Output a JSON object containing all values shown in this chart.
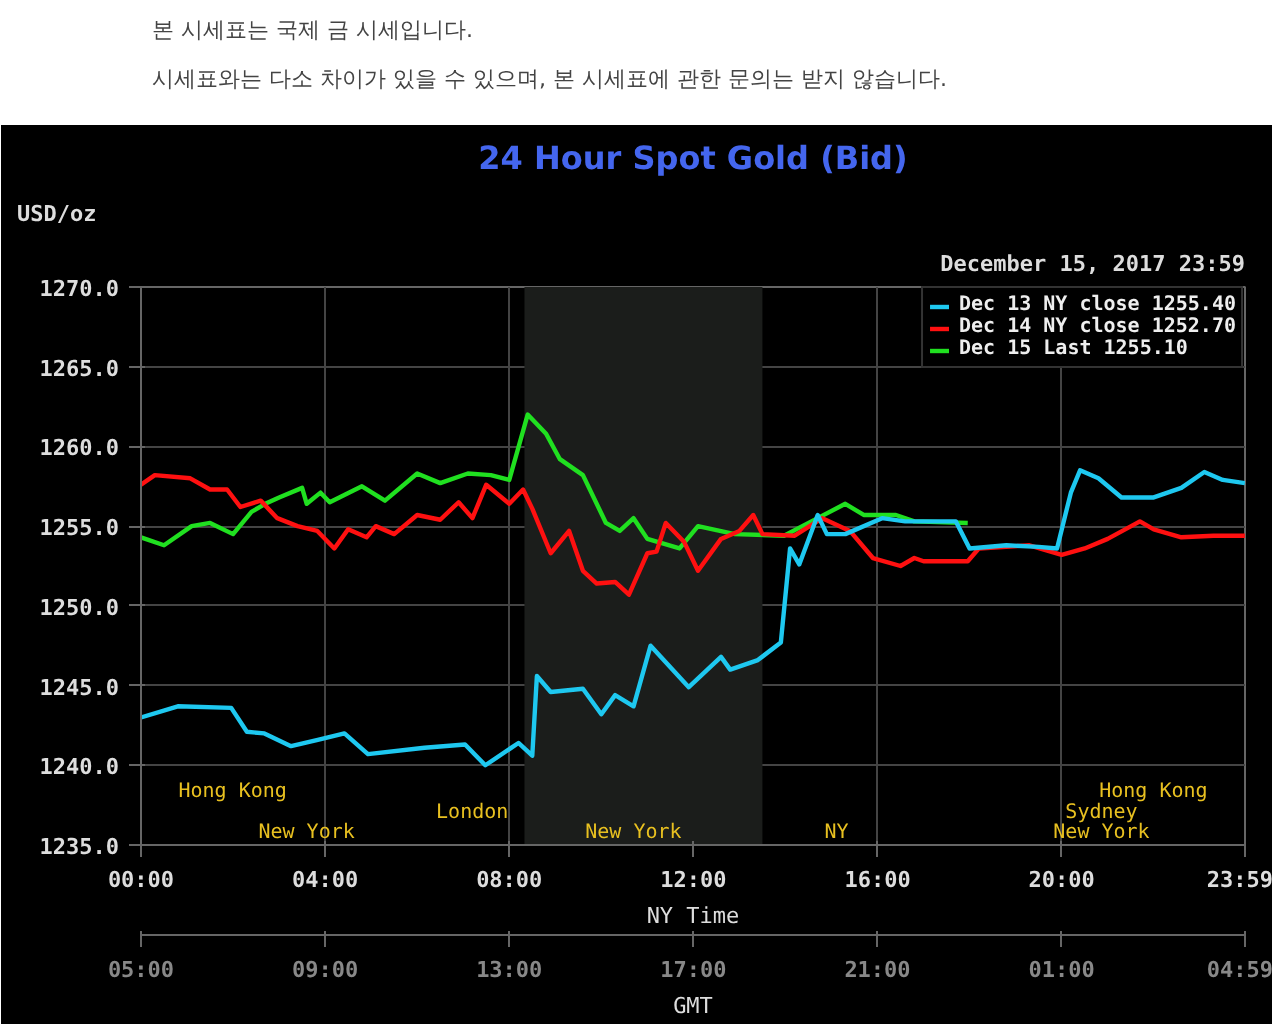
{
  "chart_data": {
    "type": "line",
    "title": "24 Hour Spot Gold (Bid)",
    "subtitle": "December 15, 2017 23:59",
    "ylabel": "USD/oz",
    "xlabel": "NY Time",
    "x2label": "GMT",
    "xlim": [
      0,
      23.983
    ],
    "xticks": [
      {
        "value": 0,
        "label": "00:00"
      },
      {
        "value": 4,
        "label": "04:00"
      },
      {
        "value": 8,
        "label": "08:00"
      },
      {
        "value": 12,
        "label": "12:00"
      },
      {
        "value": 16,
        "label": "16:00"
      },
      {
        "value": 20,
        "label": "20:00"
      },
      {
        "value": 23.983,
        "label": "23:59"
      }
    ],
    "x2lim": [
      "2017-12-15T05:00",
      "2017-12-16T04:59"
    ],
    "x2ticks": [
      {
        "value": "2017-12-15T05:00",
        "label": "05:00"
      },
      {
        "value": "2017-12-15T09:00",
        "label": "09:00"
      },
      {
        "value": "2017-12-15T13:00",
        "label": "13:00"
      },
      {
        "value": "2017-12-15T17:00",
        "label": "17:00"
      },
      {
        "value": "2017-12-15T21:00",
        "label": "21:00"
      },
      {
        "value": "2017-12-16T01:00",
        "label": "01:00"
      },
      {
        "value": "2017-12-16T04:59",
        "label": "04:59"
      }
    ],
    "ylim": [
      1235,
      1270
    ],
    "yticks": [
      {
        "value": 1235,
        "label": "1235.0"
      },
      {
        "value": 1240,
        "label": "1240.0"
      },
      {
        "value": 1245,
        "label": "1245.0"
      },
      {
        "value": 1250,
        "label": "1250.0"
      },
      {
        "value": 1255,
        "label": "1255.0"
      },
      {
        "value": 1260,
        "label": "1260.0"
      },
      {
        "value": 1265,
        "label": "1265.0"
      },
      {
        "value": 1270,
        "label": "1270.0"
      }
    ],
    "grid": true,
    "legend": "top right",
    "line_style": "solid",
    "bands": [
      {
        "axis": "x",
        "from": 8.33,
        "to": 13.5,
        "color": "#1b1d1b"
      }
    ],
    "series": [
      {
        "name": "Dec 13 NY close 1255.40",
        "color": "#1ec8f0",
        "x": [
          0,
          0.8,
          1.96,
          2.3,
          2.68,
          3.26,
          3.84,
          4.42,
          4.93,
          6.16,
          7.04,
          7.48,
          8.2,
          8.5,
          8.6,
          8.9,
          9.6,
          10.0,
          10.3,
          10.7,
          11.07,
          11.9,
          12.6,
          12.8,
          13.4,
          13.9,
          14.1,
          14.3,
          14.7,
          14.9,
          15.3,
          16.1,
          16.6,
          17.7,
          18.0,
          18.8,
          19.5,
          19.9,
          20.2,
          20.4,
          20.8,
          21.3,
          22.0,
          22.6,
          23.1,
          23.5,
          23.98
        ],
        "values": [
          1243.0,
          1243.7,
          1243.6,
          1242.1,
          1242.0,
          1241.2,
          1241.6,
          1242.0,
          1240.7,
          1241.1,
          1241.3,
          1240.0,
          1241.4,
          1240.6,
          1245.6,
          1244.6,
          1244.8,
          1243.2,
          1244.4,
          1243.7,
          1247.5,
          1244.9,
          1246.8,
          1246.0,
          1246.6,
          1247.7,
          1253.6,
          1252.6,
          1255.7,
          1254.5,
          1254.5,
          1255.5,
          1255.3,
          1255.3,
          1253.6,
          1253.8,
          1253.7,
          1253.6,
          1257.1,
          1258.5,
          1258.0,
          1256.8,
          1256.8,
          1257.4,
          1258.4,
          1257.9,
          1257.7
        ]
      },
      {
        "name": "Dec 14 NY close 1252.70",
        "color": "#ff1010",
        "x": [
          0,
          0.3,
          1.07,
          1.5,
          1.87,
          2.16,
          2.6,
          2.96,
          3.4,
          3.83,
          4.2,
          4.5,
          4.9,
          5.1,
          5.5,
          6.0,
          6.5,
          6.9,
          7.2,
          7.5,
          8.0,
          8.3,
          8.5,
          8.9,
          9.3,
          9.6,
          9.9,
          10.3,
          10.6,
          11.0,
          11.2,
          11.4,
          11.8,
          12.1,
          12.6,
          13.0,
          13.3,
          13.5,
          14.2,
          14.8,
          15.4,
          15.9,
          16.5,
          16.8,
          17.0,
          17.96,
          18.2,
          19.3,
          20.0,
          20.5,
          21.0,
          21.7,
          22.0,
          22.6,
          23.3,
          23.98
        ],
        "values": [
          1257.6,
          1258.2,
          1258.0,
          1257.3,
          1257.3,
          1256.2,
          1256.6,
          1255.5,
          1255.0,
          1254.7,
          1253.6,
          1254.8,
          1254.3,
          1255.0,
          1254.5,
          1255.7,
          1255.4,
          1256.5,
          1255.5,
          1257.6,
          1256.4,
          1257.3,
          1256.1,
          1253.3,
          1254.7,
          1252.2,
          1251.4,
          1251.5,
          1250.7,
          1253.3,
          1253.4,
          1255.2,
          1254.0,
          1252.2,
          1254.2,
          1254.7,
          1255.7,
          1254.5,
          1254.4,
          1255.5,
          1254.7,
          1253.0,
          1252.5,
          1253.0,
          1252.8,
          1252.8,
          1253.6,
          1253.8,
          1253.2,
          1253.6,
          1254.2,
          1255.3,
          1254.8,
          1254.3,
          1254.4,
          1254.4
        ]
      },
      {
        "name": "Dec 15 Last 1255.10",
        "color": "#20e020",
        "x": [
          0,
          0.5,
          1.1,
          1.5,
          2.0,
          2.4,
          2.7,
          3.0,
          3.5,
          3.6,
          3.9,
          4.1,
          4.8,
          5.3,
          6.0,
          6.5,
          7.1,
          7.6,
          8.0,
          8.4,
          8.8,
          9.1,
          9.6,
          10.1,
          10.4,
          10.7,
          11.0,
          11.7,
          12.1,
          12.9,
          13.97,
          14.7,
          15.3,
          15.7,
          16.4,
          16.8,
          17.96
        ],
        "values": [
          1254.3,
          1253.8,
          1255.0,
          1255.2,
          1254.5,
          1255.9,
          1256.4,
          1256.8,
          1257.4,
          1256.4,
          1257.1,
          1256.5,
          1257.5,
          1256.6,
          1258.3,
          1257.7,
          1258.3,
          1258.2,
          1257.9,
          1262.0,
          1260.8,
          1259.2,
          1258.2,
          1255.2,
          1254.7,
          1255.5,
          1254.2,
          1253.6,
          1255.0,
          1254.5,
          1254.4,
          1255.5,
          1256.4,
          1255.7,
          1255.7,
          1255.3,
          1255.2
        ]
      }
    ],
    "annotations": [
      "본 시세표는 국제 금 시세입니다.",
      "시세표와는 다소 차이가 있을 수 있으며, 본 시세표에 관한 문의는 받지 않습니다.",
      "Hong Kong",
      "Hong Kong",
      "London",
      "Sydney",
      "New York",
      "New York",
      "NY",
      "New York"
    ]
  }
}
